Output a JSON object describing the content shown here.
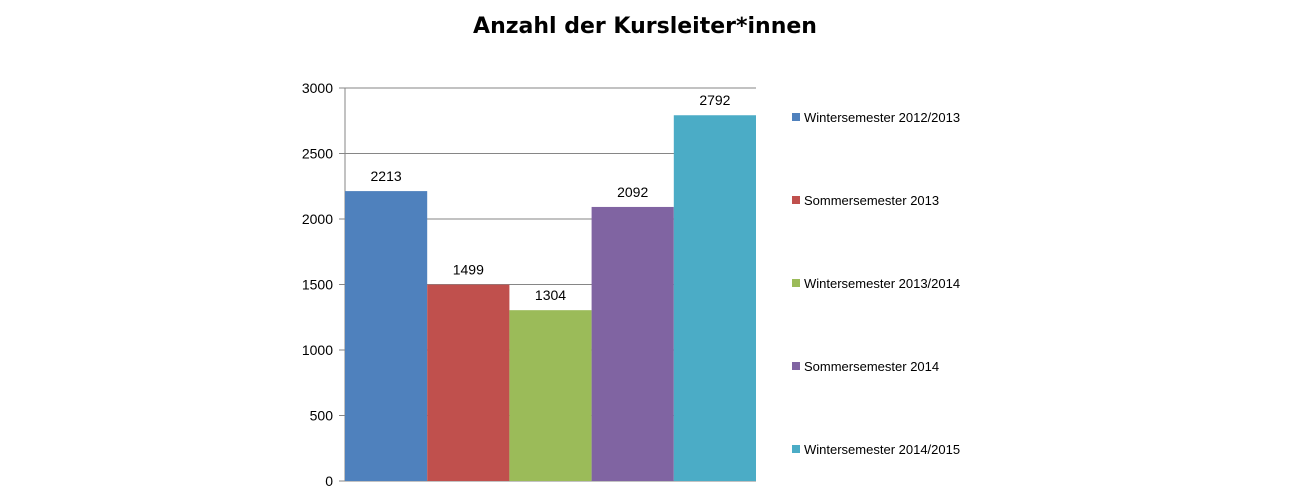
{
  "chart_data": {
    "type": "bar",
    "title": "Anzahl der Kursleiter*innen",
    "xlabel": "",
    "ylabel": "",
    "ylim": [
      0,
      3000
    ],
    "yticks": [
      0,
      500,
      1000,
      1500,
      2000,
      2500,
      3000
    ],
    "ytick_labels": [
      "0",
      "500",
      "1000",
      "1500",
      "2000",
      "2500",
      "3000"
    ],
    "grid": true,
    "legend_position": "right",
    "series": [
      {
        "name": "Wintersemester 2012/2013",
        "value": 2213,
        "label": "2213",
        "color": "#4F81BD"
      },
      {
        "name": "Sommersemester 2013",
        "value": 1499,
        "label": "1499",
        "color": "#C0504D"
      },
      {
        "name": "Wintersemester 2013/2014",
        "value": 1304,
        "label": "1304",
        "color": "#9BBB59"
      },
      {
        "name": "Sommersemester 2014",
        "value": 2092,
        "label": "2092",
        "color": "#8064A2"
      },
      {
        "name": "Wintersemester 2014/2015",
        "value": 2792,
        "label": "2792",
        "color": "#4BACC6"
      }
    ]
  }
}
